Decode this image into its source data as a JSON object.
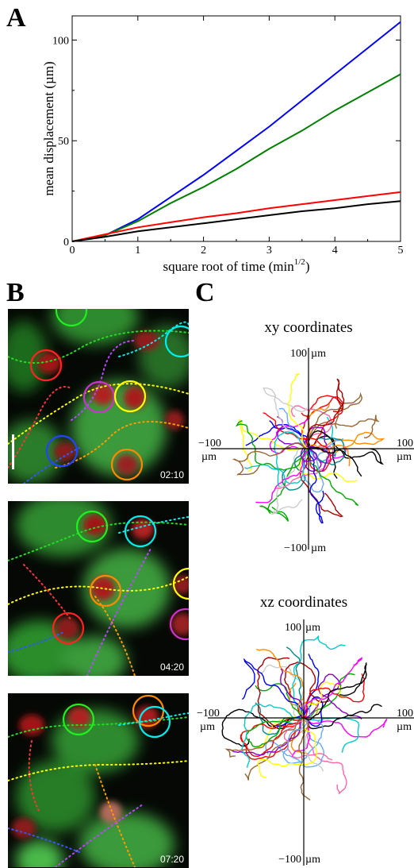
{
  "panels": {
    "a": "A",
    "b": "B",
    "c": "C"
  },
  "chart_data": {
    "type": "line",
    "title": "",
    "xlabel": "square root of time (min",
    "xlabel_sup": "1/2",
    "xlabel_close": ")",
    "ylabel": "mean displacement (µm)",
    "xlim": [
      0,
      5
    ],
    "ylim": [
      0,
      112
    ],
    "xticks": [
      0,
      1,
      2,
      3,
      4,
      5
    ],
    "yticks": [
      0,
      50,
      100
    ],
    "grid": false,
    "legend": "none",
    "x": [
      0,
      0.5,
      1,
      1.5,
      2,
      2.5,
      3,
      3.5,
      4,
      4.5,
      5
    ],
    "series": [
      {
        "color": "#0000ff",
        "values": [
          0,
          3,
          11,
          22,
          33,
          45,
          57,
          70,
          83,
          96,
          109
        ]
      },
      {
        "color": "#008000",
        "values": [
          0,
          3,
          10,
          19,
          27,
          36,
          46,
          55,
          65,
          74,
          83
        ]
      },
      {
        "color": "#ff0000",
        "values": [
          0,
          3.5,
          7,
          9.5,
          12,
          14,
          16.5,
          18.5,
          20.5,
          22.5,
          24.5
        ]
      },
      {
        "color": "#000000",
        "values": [
          0,
          2.3,
          5,
          7,
          9,
          11,
          13,
          15,
          16.5,
          18.5,
          20
        ]
      }
    ]
  },
  "microscopy": {
    "frames": [
      {
        "time": "02:10",
        "scale_bar": true
      },
      {
        "time": "04:20",
        "scale_bar": false
      },
      {
        "time": "07:20",
        "scale_bar": false
      }
    ]
  },
  "tracks": {
    "xy": {
      "title": "xy coordinates",
      "top_value": "100",
      "top_unit": "µm",
      "bottom_value": "−100",
      "bottom_unit": "µm",
      "left_value": "−100",
      "left_unit": "µm",
      "right_value": "100",
      "right_unit": "µm"
    },
    "xz": {
      "title": "xz coordinates",
      "top_value": "100",
      "top_unit": "µm",
      "bottom_value": "−100",
      "bottom_unit": "µm",
      "left_value": "−100",
      "left_unit": "µm",
      "right_value": "100",
      "right_unit": "µm"
    },
    "colors": [
      "#ff0000",
      "#00aa00",
      "#0000ff",
      "#ff8c00",
      "#ff00ff",
      "#00cccc",
      "#8800cc",
      "#000000",
      "#ffff00",
      "#996633",
      "#ff66aa",
      "#66aaff",
      "#cccccc",
      "#008888",
      "#aa0000"
    ]
  }
}
